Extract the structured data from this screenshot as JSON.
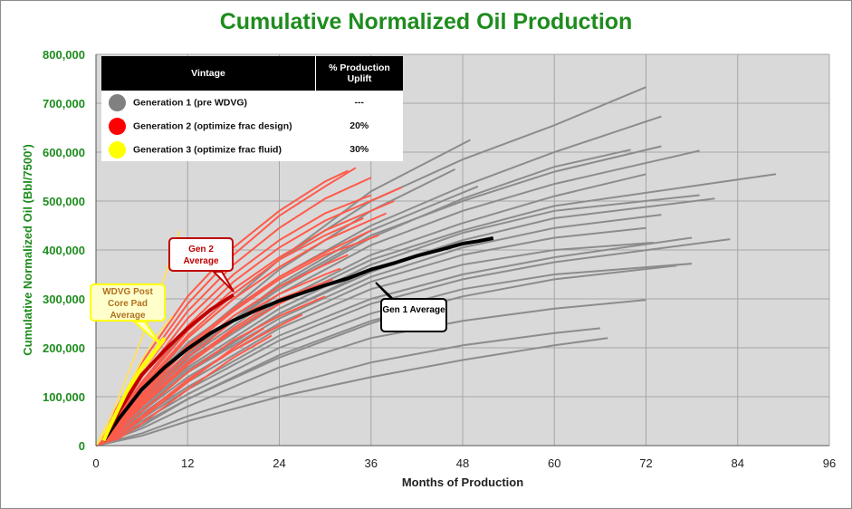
{
  "chart_data": {
    "type": "line",
    "title": "Cumulative Normalized Oil Production",
    "xlabel": "Months of Production",
    "ylabel": "Cumulative Normalized Oil (Bbl/7500')",
    "xlim": [
      0,
      96
    ],
    "ylim": [
      0,
      800000
    ],
    "x_ticks": [
      "0",
      "12",
      "24",
      "36",
      "48",
      "60",
      "72",
      "84",
      "96"
    ],
    "y_ticks": [
      "0",
      "100,000",
      "200,000",
      "300,000",
      "400,000",
      "500,000",
      "600,000",
      "700,000",
      "800,000"
    ],
    "grid": true,
    "legend_position": "top-left",
    "legend": {
      "headers": [
        "Vintage",
        "% Production Uplift"
      ],
      "rows": [
        {
          "label": "Generation 1 (pre WDVG)",
          "uplift": "---",
          "color": "#808080"
        },
        {
          "label": "Generation 2 (optimize frac design)",
          "uplift": "20%",
          "color": "#ff0000"
        },
        {
          "label": "Generation 3 (optimize frac fluid)",
          "uplift": "30%",
          "color": "#ffff00"
        }
      ]
    },
    "series": [
      {
        "name": "Gen 1 Average",
        "color": "#000000",
        "x": [
          1,
          3,
          6,
          9,
          12,
          15,
          18,
          21,
          24,
          27,
          30,
          33,
          36,
          39,
          42,
          45,
          48,
          50,
          52
        ],
        "values": [
          10000,
          55000,
          115000,
          160000,
          198000,
          230000,
          256000,
          277000,
          296000,
          312000,
          328000,
          342000,
          360000,
          373000,
          388000,
          400000,
          413000,
          418000,
          424000
        ]
      },
      {
        "name": "Gen 2 Average",
        "color": "#c00000",
        "x": [
          1,
          3,
          6,
          9,
          12,
          15,
          18
        ],
        "values": [
          12000,
          70000,
          145000,
          195000,
          240000,
          278000,
          308000
        ]
      },
      {
        "name": "WDVG Post Core Pad Average",
        "color": "#ffff00",
        "x": [
          1,
          2,
          4,
          6,
          8,
          9
        ],
        "values": [
          10000,
          45000,
          110000,
          160000,
          200000,
          220000
        ]
      }
    ],
    "well_curves": {
      "gen1": [
        {
          "x": [
            0,
            6,
            12,
            24,
            36,
            48,
            60,
            72
          ],
          "values": [
            0,
            130000,
            240000,
            380000,
            500000,
            585000,
            655000,
            733000
          ]
        },
        {
          "x": [
            0,
            6,
            12,
            24,
            36,
            48,
            60,
            74
          ],
          "values": [
            0,
            110000,
            210000,
            345000,
            450000,
            530000,
            600000,
            673000
          ]
        },
        {
          "x": [
            0,
            6,
            12,
            24,
            36,
            48,
            60,
            74
          ],
          "values": [
            0,
            100000,
            190000,
            325000,
            430000,
            500000,
            560000,
            612000
          ]
        },
        {
          "x": [
            0,
            6,
            12,
            24,
            36,
            48,
            60,
            79
          ],
          "values": [
            0,
            95000,
            180000,
            310000,
            410000,
            480000,
            535000,
            603000
          ]
        },
        {
          "x": [
            0,
            6,
            12,
            24,
            36,
            48,
            60,
            70
          ],
          "values": [
            0,
            100000,
            190000,
            320000,
            425000,
            505000,
            570000,
            605000
          ]
        },
        {
          "x": [
            0,
            6,
            12,
            24,
            36,
            48,
            60,
            89
          ],
          "values": [
            0,
            90000,
            170000,
            290000,
            380000,
            440000,
            490000,
            555000
          ]
        },
        {
          "x": [
            0,
            6,
            12,
            24,
            36,
            48,
            60,
            72
          ],
          "values": [
            0,
            95000,
            175000,
            295000,
            390000,
            455000,
            510000,
            555000
          ]
        },
        {
          "x": [
            0,
            6,
            12,
            24,
            36,
            48,
            60,
            79
          ],
          "values": [
            0,
            85000,
            160000,
            280000,
            370000,
            435000,
            480000,
            512000
          ]
        },
        {
          "x": [
            0,
            6,
            12,
            24,
            36,
            48,
            60,
            81
          ],
          "values": [
            0,
            80000,
            155000,
            270000,
            355000,
            420000,
            465000,
            505000
          ]
        },
        {
          "x": [
            0,
            6,
            12,
            24,
            36,
            48,
            60,
            74
          ],
          "values": [
            0,
            75000,
            150000,
            260000,
            345000,
            405000,
            445000,
            472000
          ]
        },
        {
          "x": [
            0,
            6,
            12,
            24,
            36,
            48,
            60,
            72
          ],
          "values": [
            0,
            70000,
            140000,
            250000,
            335000,
            390000,
            425000,
            445000
          ]
        },
        {
          "x": [
            0,
            6,
            12,
            24,
            36,
            48,
            60,
            73
          ],
          "values": [
            0,
            65000,
            130000,
            240000,
            320000,
            370000,
            400000,
            415000
          ]
        },
        {
          "x": [
            0,
            6,
            12,
            24,
            36,
            48,
            60,
            78
          ],
          "values": [
            0,
            60000,
            120000,
            225000,
            300000,
            350000,
            385000,
            425000
          ]
        },
        {
          "x": [
            0,
            6,
            12,
            24,
            36,
            48,
            60,
            83
          ],
          "values": [
            0,
            55000,
            115000,
            215000,
            290000,
            340000,
            375000,
            422000
          ]
        },
        {
          "x": [
            0,
            6,
            12,
            24,
            36,
            48,
            60,
            78
          ],
          "values": [
            0,
            50000,
            105000,
            200000,
            270000,
            320000,
            350000,
            372000
          ]
        },
        {
          "x": [
            0,
            6,
            12,
            24,
            36,
            48,
            60,
            76
          ],
          "values": [
            0,
            45000,
            95000,
            185000,
            255000,
            305000,
            340000,
            368000
          ]
        },
        {
          "x": [
            0,
            6,
            12,
            24,
            36,
            48,
            60,
            72
          ],
          "values": [
            0,
            35000,
            80000,
            160000,
            220000,
            255000,
            280000,
            298000
          ]
        },
        {
          "x": [
            0,
            6,
            12,
            24,
            36,
            48,
            60,
            66
          ],
          "values": [
            0,
            25000,
            60000,
            120000,
            170000,
            205000,
            230000,
            240000
          ]
        },
        {
          "x": [
            0,
            6,
            12,
            24,
            36,
            48,
            60,
            67
          ],
          "values": [
            0,
            20000,
            50000,
            100000,
            140000,
            175000,
            205000,
            220000
          ]
        },
        {
          "x": [
            0,
            6,
            12,
            24,
            36,
            49
          ],
          "values": [
            0,
            110000,
            220000,
            380000,
            520000,
            625000
          ]
        },
        {
          "x": [
            0,
            6,
            12,
            24,
            36,
            47
          ],
          "values": [
            0,
            105000,
            205000,
            360000,
            480000,
            565000
          ]
        },
        {
          "x": [
            0,
            6,
            12,
            24,
            36,
            50
          ],
          "values": [
            0,
            90000,
            185000,
            330000,
            440000,
            530000
          ]
        },
        {
          "x": [
            0,
            6,
            12,
            24,
            36,
            48
          ],
          "values": [
            0,
            70000,
            150000,
            270000,
            360000,
            420000
          ]
        },
        {
          "x": [
            0,
            6,
            12,
            24,
            36,
            45
          ],
          "values": [
            0,
            40000,
            95000,
            180000,
            250000,
            295000
          ]
        }
      ],
      "gen2": [
        {
          "x": [
            0,
            3,
            6,
            12,
            18,
            24,
            30,
            34
          ],
          "values": [
            0,
            80000,
            160000,
            290000,
            390000,
            470000,
            530000,
            568000
          ]
        },
        {
          "x": [
            0,
            3,
            6,
            12,
            18,
            24,
            30,
            36
          ],
          "values": [
            0,
            75000,
            150000,
            275000,
            370000,
            445000,
            505000,
            548000
          ]
        },
        {
          "x": [
            0,
            3,
            6,
            12,
            18,
            24,
            30,
            36
          ],
          "values": [
            0,
            70000,
            140000,
            260000,
            350000,
            420000,
            475000,
            512000
          ]
        },
        {
          "x": [
            0,
            3,
            6,
            12,
            18,
            24,
            30,
            40
          ],
          "values": [
            0,
            65000,
            130000,
            245000,
            335000,
            405000,
            460000,
            528000
          ]
        },
        {
          "x": [
            0,
            3,
            6,
            12,
            18,
            24,
            30,
            39
          ],
          "values": [
            0,
            60000,
            125000,
            235000,
            320000,
            385000,
            440000,
            500000
          ]
        },
        {
          "x": [
            0,
            3,
            6,
            12,
            18,
            24,
            30,
            38
          ],
          "values": [
            0,
            55000,
            115000,
            220000,
            300000,
            365000,
            420000,
            475000
          ]
        },
        {
          "x": [
            0,
            3,
            6,
            12,
            18,
            24,
            30,
            36
          ],
          "values": [
            0,
            50000,
            105000,
            205000,
            280000,
            345000,
            395000,
            440000
          ]
        },
        {
          "x": [
            0,
            3,
            6,
            12,
            18,
            24,
            30,
            33
          ],
          "values": [
            0,
            45000,
            95000,
            190000,
            265000,
            325000,
            370000,
            390000
          ]
        },
        {
          "x": [
            0,
            3,
            6,
            12,
            18,
            24,
            30,
            32
          ],
          "values": [
            0,
            40000,
            90000,
            180000,
            255000,
            310000,
            350000,
            362000
          ]
        },
        {
          "x": [
            0,
            3,
            6,
            12,
            18,
            24,
            28
          ],
          "values": [
            0,
            35000,
            80000,
            165000,
            235000,
            290000,
            320000
          ]
        },
        {
          "x": [
            0,
            3,
            6,
            12,
            18,
            24,
            30
          ],
          "values": [
            0,
            30000,
            70000,
            150000,
            215000,
            265000,
            305000
          ]
        },
        {
          "x": [
            0,
            3,
            6,
            12,
            18,
            24,
            27
          ],
          "values": [
            0,
            25000,
            60000,
            135000,
            195000,
            245000,
            268000
          ]
        },
        {
          "x": [
            0,
            3,
            6,
            12,
            18,
            24,
            30,
            33
          ],
          "values": [
            0,
            85000,
            170000,
            305000,
            405000,
            480000,
            540000,
            562000
          ]
        },
        {
          "x": [
            0,
            3,
            6,
            12,
            18,
            24,
            30,
            35
          ],
          "values": [
            0,
            60000,
            120000,
            225000,
            310000,
            380000,
            430000,
            465000
          ]
        },
        {
          "x": [
            0,
            3,
            6,
            12,
            18,
            24,
            30,
            37
          ],
          "values": [
            0,
            45000,
            100000,
            200000,
            275000,
            340000,
            390000,
            430000
          ]
        },
        {
          "x": [
            0,
            3,
            6,
            12,
            18,
            24,
            31
          ],
          "values": [
            0,
            35000,
            85000,
            170000,
            240000,
            300000,
            340000
          ]
        },
        {
          "x": [
            0,
            3,
            6,
            12,
            18,
            22
          ],
          "values": [
            0,
            20000,
            55000,
            130000,
            200000,
            240000
          ]
        },
        {
          "x": [
            0,
            3,
            6,
            12,
            18,
            23
          ],
          "values": [
            0,
            15000,
            45000,
            115000,
            180000,
            225000
          ]
        }
      ],
      "gen3": [
        {
          "x": [
            0,
            2,
            4,
            6,
            8,
            11
          ],
          "values": [
            0,
            60000,
            140000,
            220000,
            300000,
            440000
          ]
        },
        {
          "x": [
            0,
            2,
            4,
            6,
            8,
            10
          ],
          "values": [
            0,
            50000,
            115000,
            175000,
            225000,
            265000
          ]
        },
        {
          "x": [
            0,
            2,
            4,
            6,
            8,
            9
          ],
          "values": [
            0,
            40000,
            95000,
            150000,
            195000,
            215000
          ]
        }
      ]
    },
    "annotations": [
      {
        "id": "gen2",
        "text": "Gen 2 Average"
      },
      {
        "id": "gen1",
        "text": "Gen 1 Average"
      },
      {
        "id": "wdvg",
        "text": "WDVG Post Core Pad Average"
      }
    ]
  }
}
